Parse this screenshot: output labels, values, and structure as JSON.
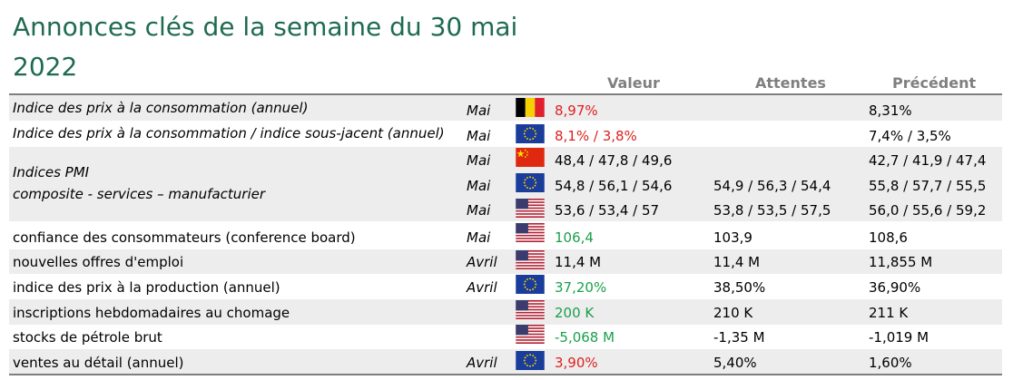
{
  "title": "Annonces clés de la semaine du 30 mai 2022",
  "columns": {
    "valeur": "Valeur",
    "attentes": "Attentes",
    "precedent": "Précédent"
  },
  "colors": {
    "title": "#1e6b4f",
    "red": "#e02020",
    "green": "#1aa04a",
    "band": "#ededed",
    "rule": "#7f7f7f"
  },
  "rows": [
    {
      "label": "Indice des prix à la consommation (annuel)",
      "period": "Mai",
      "flag": "belgium-flag",
      "value": "8,97%",
      "value_color": "red",
      "expected": "",
      "previous": "8,31%"
    },
    {
      "label": "Indice des prix à la consommation / indice sous-jacent (annuel)",
      "period": "Mai",
      "flag": "eu-flag",
      "value": "8,1% / 3,8%",
      "value_color": "red",
      "expected": "",
      "previous": "7,4% / 3,5%"
    },
    {
      "label": "Indices PMI",
      "label2": "composite - services – manufacturier",
      "sub": [
        {
          "period": "Mai",
          "flag": "china-flag",
          "value": "48,4 / 47,8 / 49,6",
          "expected": "",
          "previous": "42,7 / 41,9 / 47,4"
        },
        {
          "period": "Mai",
          "flag": "eu-flag",
          "value": "54,8 / 56,1 / 54,6",
          "expected": "54,9 / 56,3 / 54,4",
          "previous": "55,8 / 57,7 / 55,5"
        },
        {
          "period": "Mai",
          "flag": "usa-flag",
          "value": "53,6 / 53,4 / 57",
          "expected": "53,8 / 53,5 / 57,5",
          "previous": "56,0 / 55,6 / 59,2"
        }
      ]
    },
    {
      "label": "confiance des consommateurs (conference board)",
      "period": "Mai",
      "flag": "usa-flag",
      "value": "106,4",
      "value_color": "green",
      "expected": "103,9",
      "previous": "108,6"
    },
    {
      "label": "nouvelles offres d'emploi",
      "period": "Avril",
      "flag": "usa-flag",
      "value": "11,4 M",
      "value_color": "black",
      "expected": "11,4 M",
      "previous": "11,855 M"
    },
    {
      "label": "indice des prix à la production (annuel)",
      "period": "Avril",
      "flag": "eu-flag",
      "value": "37,20%",
      "value_color": "green",
      "expected": "38,50%",
      "previous": "36,90%"
    },
    {
      "label": "inscriptions hebdomadaires au chomage",
      "period": "",
      "flag": "usa-flag",
      "value": "200 K",
      "value_color": "green",
      "expected": "210 K",
      "previous": "211 K"
    },
    {
      "label": "stocks de pétrole brut",
      "period": "",
      "flag": "usa-flag",
      "value": "-5,068 M",
      "value_color": "green",
      "expected": "-1,35 M",
      "previous": "-1,019 M"
    },
    {
      "label": "ventes au détail (annuel)",
      "period": "Avril",
      "flag": "eu-flag",
      "value": "3,90%",
      "value_color": "red",
      "expected": "5,40%",
      "previous": "1,60%"
    }
  ]
}
